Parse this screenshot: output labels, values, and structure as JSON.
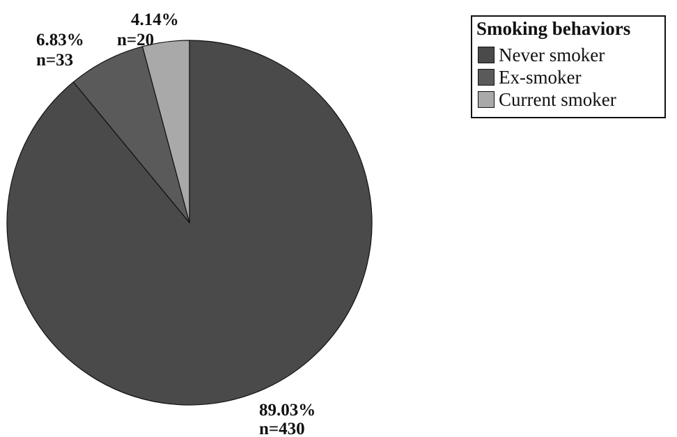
{
  "chart_data": {
    "type": "pie",
    "legend_title": "Smoking behaviors",
    "legend_position": "top-right",
    "slices": [
      {
        "name": "Never smoker",
        "value": 430,
        "percent": "89.03%",
        "count": "n=430",
        "color": "#4a4a4a"
      },
      {
        "name": "Ex-smoker",
        "value": 33,
        "percent": "6.83%",
        "count": "n=33",
        "color": "#5a5a5a"
      },
      {
        "name": "Current smoker",
        "value": 20,
        "percent": "4.14%",
        "count": "n=20",
        "color": "#a9a9a9"
      }
    ]
  }
}
